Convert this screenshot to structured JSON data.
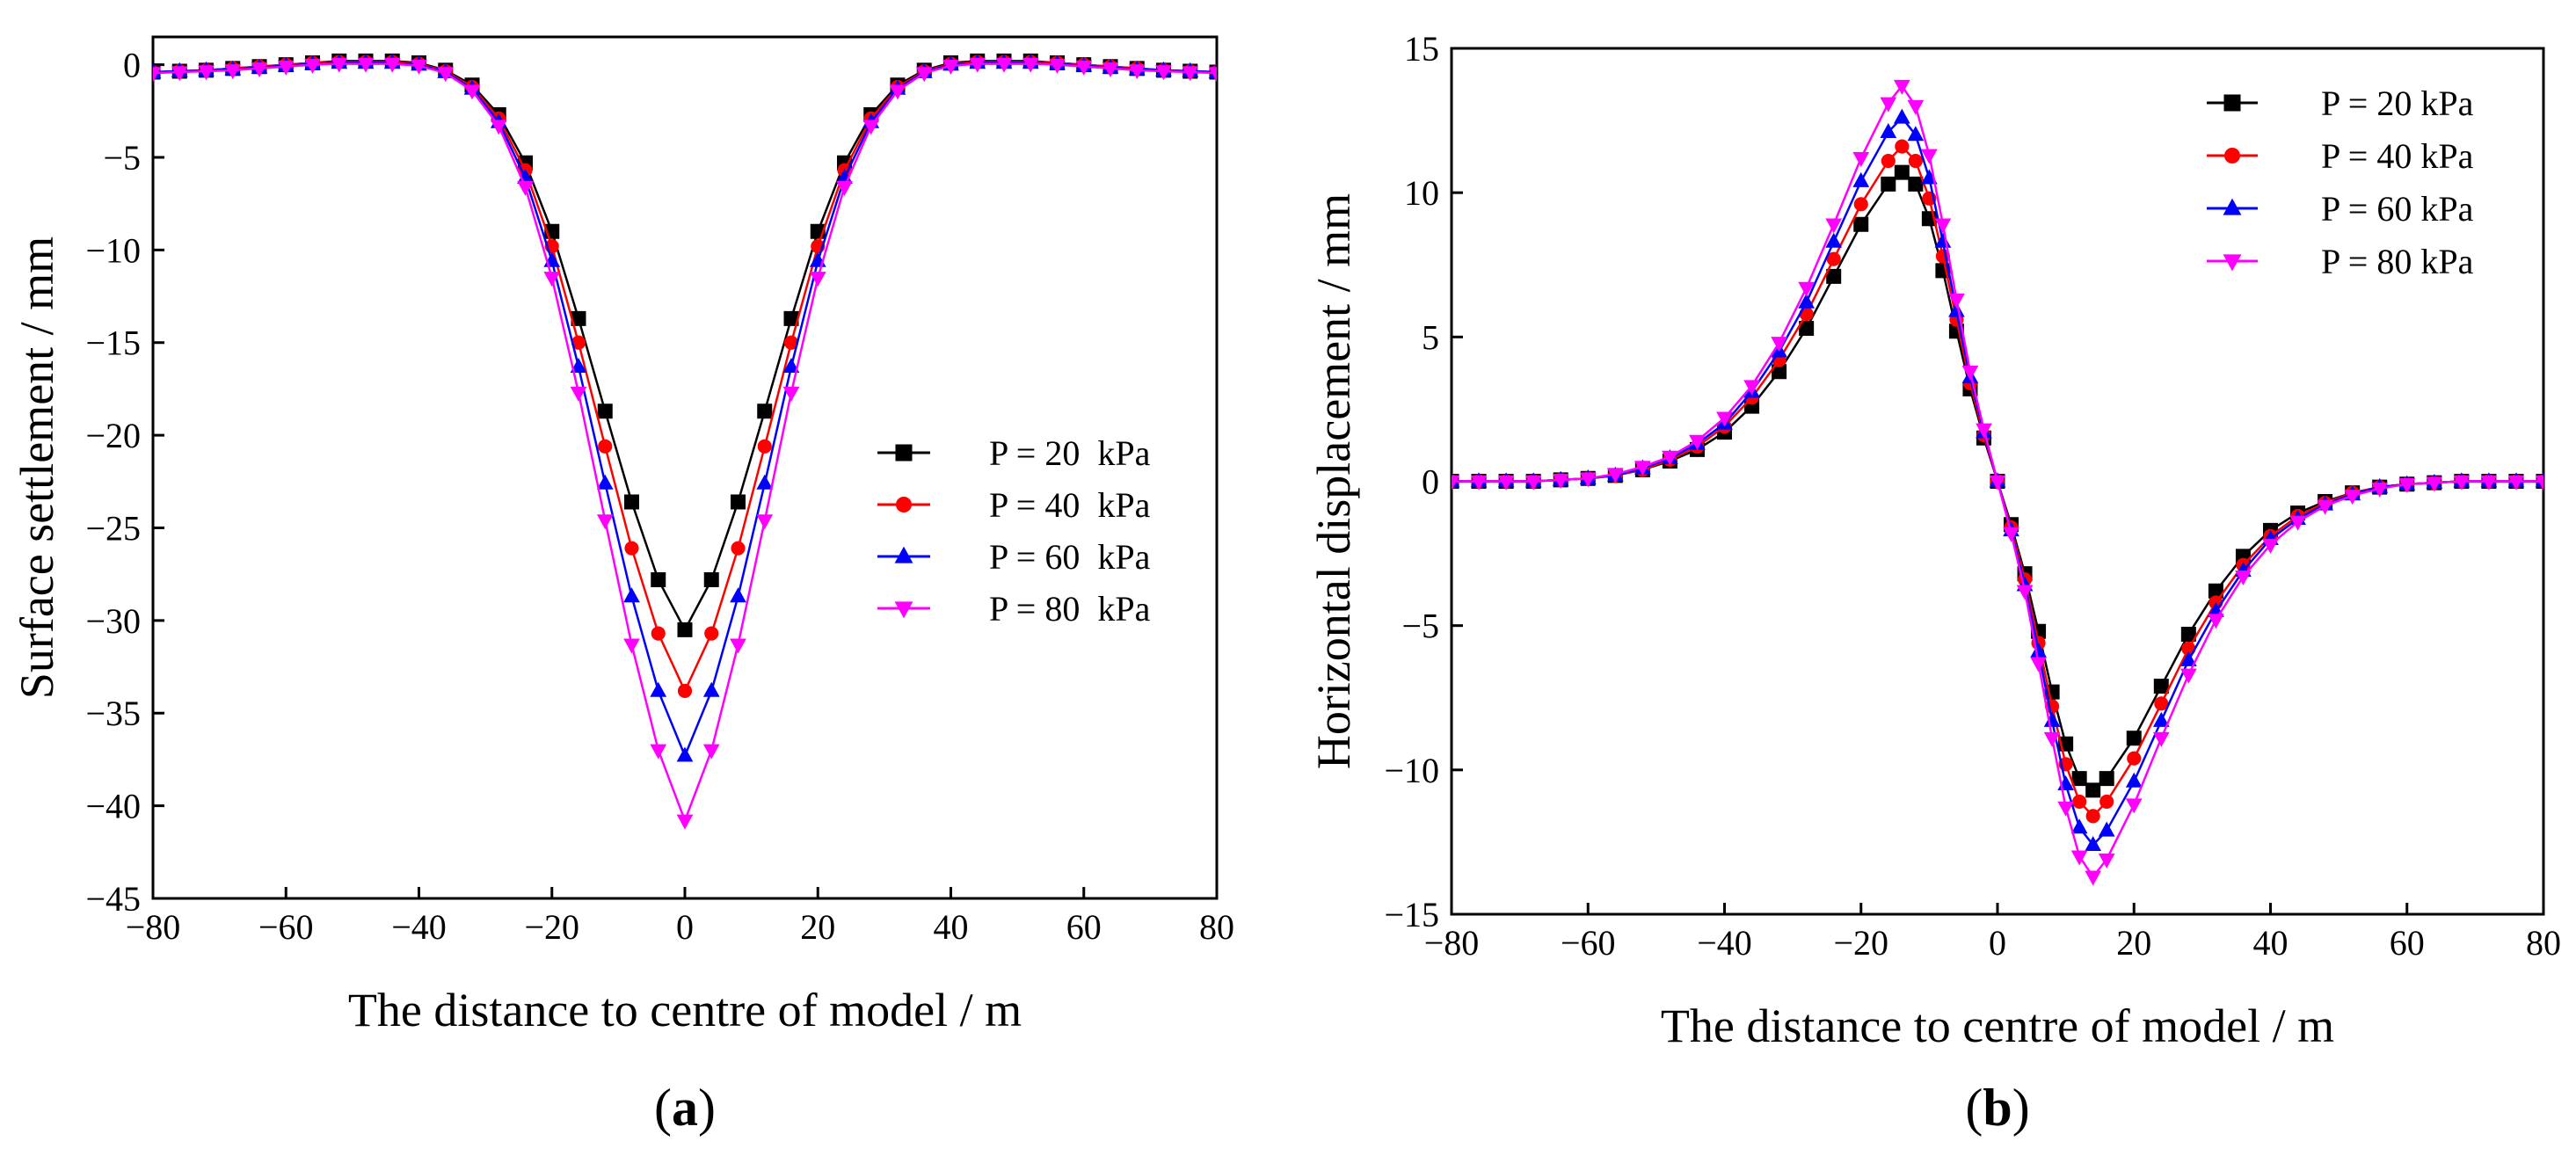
{
  "chart_data": [
    {
      "type": "line",
      "panel_label": "(a)",
      "panel_label_parts": [
        "(",
        "a",
        ")"
      ],
      "xlabel": "The distance to centre of model / m",
      "ylabel": "Surface settlement / mm",
      "xlim": [
        -80,
        80
      ],
      "ylim": [
        -45,
        1.5
      ],
      "xticks": [
        -80,
        -60,
        -40,
        -20,
        0,
        20,
        40,
        60,
        80
      ],
      "yticks": [
        0,
        -5,
        -10,
        -15,
        -20,
        -25,
        -30,
        -35,
        -40,
        -45
      ],
      "xtick_labels": [
        "−80",
        "−60",
        "−40",
        "−20",
        "0",
        "20",
        "40",
        "60",
        "80"
      ],
      "ytick_labels": [
        "0",
        "−5",
        "−10",
        "−15",
        "−20",
        "−25",
        "−30",
        "−35",
        "−40",
        "−45"
      ],
      "legend_position": "center-right",
      "x": [
        -80,
        -76,
        -72,
        -68,
        -64,
        -60,
        -56,
        -52,
        -48,
        -44,
        -40,
        -36,
        -32,
        -28,
        -24,
        -20,
        -16,
        -12,
        -8,
        -4,
        0,
        4,
        8,
        12,
        16,
        20,
        24,
        28,
        32,
        36,
        40,
        44,
        48,
        52,
        56,
        60,
        64,
        68,
        72,
        76,
        80
      ],
      "series": [
        {
          "name": "P = 20  kPa",
          "color": "#000000",
          "marker": "square",
          "values": [
            -0.4,
            -0.35,
            -0.3,
            -0.2,
            -0.1,
            0.0,
            0.1,
            0.2,
            0.2,
            0.2,
            0.1,
            -0.3,
            -1.1,
            -2.7,
            -5.3,
            -9.0,
            -13.7,
            -18.7,
            -23.6,
            -27.8,
            -30.5,
            -27.8,
            -23.6,
            -18.7,
            -13.7,
            -9.0,
            -5.3,
            -2.7,
            -1.1,
            -0.3,
            0.1,
            0.2,
            0.2,
            0.2,
            0.1,
            0.0,
            -0.1,
            -0.2,
            -0.3,
            -0.35,
            -0.4
          ]
        },
        {
          "name": "P = 40  kPa",
          "color": "#ff0000",
          "marker": "circle",
          "values": [
            -0.4,
            -0.35,
            -0.3,
            -0.2,
            -0.1,
            0.0,
            0.1,
            0.15,
            0.15,
            0.15,
            0.05,
            -0.35,
            -1.2,
            -2.9,
            -5.7,
            -9.8,
            -15.0,
            -20.6,
            -26.1,
            -30.7,
            -33.8,
            -30.7,
            -26.1,
            -20.6,
            -15.0,
            -9.8,
            -5.7,
            -2.9,
            -1.2,
            -0.35,
            0.05,
            0.15,
            0.15,
            0.15,
            0.1,
            0.0,
            -0.1,
            -0.2,
            -0.3,
            -0.35,
            -0.4
          ]
        },
        {
          "name": "P = 60  kPa",
          "color": "#0000ff",
          "marker": "triangle-up",
          "values": [
            -0.4,
            -0.35,
            -0.3,
            -0.25,
            -0.15,
            -0.05,
            0.05,
            0.1,
            0.1,
            0.1,
            0.0,
            -0.4,
            -1.3,
            -3.1,
            -6.1,
            -10.6,
            -16.3,
            -22.6,
            -28.7,
            -33.8,
            -37.3,
            -33.8,
            -28.7,
            -22.6,
            -16.3,
            -10.6,
            -6.1,
            -3.1,
            -1.3,
            -0.4,
            0.0,
            0.1,
            0.1,
            0.1,
            0.05,
            -0.05,
            -0.15,
            -0.25,
            -0.3,
            -0.35,
            -0.4
          ]
        },
        {
          "name": "P = 80  kPa",
          "color": "#ff00ff",
          "marker": "triangle-down",
          "values": [
            -0.45,
            -0.4,
            -0.35,
            -0.3,
            -0.2,
            -0.1,
            0.0,
            0.05,
            0.05,
            0.05,
            -0.05,
            -0.45,
            -1.4,
            -3.3,
            -6.6,
            -11.5,
            -17.7,
            -24.6,
            -31.3,
            -37.0,
            -40.8,
            -37.0,
            -31.3,
            -24.6,
            -17.7,
            -11.5,
            -6.6,
            -3.3,
            -1.4,
            -0.45,
            -0.05,
            0.05,
            0.05,
            0.05,
            0.0,
            -0.1,
            -0.2,
            -0.3,
            -0.35,
            -0.4,
            -0.45
          ]
        }
      ]
    },
    {
      "type": "line",
      "panel_label": "(b)",
      "panel_label_parts": [
        "(",
        "b",
        ")"
      ],
      "xlabel": "The distance to centre of model / m",
      "ylabel": "Horizontal displacement / mm",
      "xlim": [
        -80,
        80
      ],
      "ylim": [
        -15,
        15
      ],
      "xticks": [
        -80,
        -60,
        -40,
        -20,
        0,
        20,
        40,
        60,
        80
      ],
      "yticks": [
        15,
        10,
        5,
        0,
        -5,
        -10,
        -15
      ],
      "xtick_labels": [
        "−80",
        "−60",
        "−40",
        "−20",
        "0",
        "20",
        "40",
        "60",
        "80"
      ],
      "ytick_labels": [
        "15",
        "10",
        "5",
        "0",
        "−5",
        "−10",
        "−15"
      ],
      "legend_position": "top-right",
      "x": [
        -80,
        -76,
        -72,
        -68,
        -64,
        -60,
        -56,
        -52,
        -48,
        -44,
        -40,
        -36,
        -32,
        -28,
        -24,
        -20,
        -16,
        -14,
        -12,
        -10,
        -8,
        -6,
        -4,
        -2,
        0,
        2,
        4,
        6,
        8,
        10,
        12,
        14,
        16,
        20,
        24,
        28,
        32,
        36,
        40,
        44,
        48,
        52,
        56,
        60,
        64,
        68,
        72,
        76,
        80
      ],
      "series": [
        {
          "name": "P = 20 kPa",
          "color": "#000000",
          "marker": "square",
          "values": [
            0,
            0,
            0,
            0,
            0.05,
            0.1,
            0.2,
            0.4,
            0.7,
            1.1,
            1.7,
            2.6,
            3.8,
            5.3,
            7.1,
            8.9,
            10.3,
            10.7,
            10.3,
            9.1,
            7.3,
            5.2,
            3.2,
            1.5,
            0,
            -1.5,
            -3.2,
            -5.2,
            -7.3,
            -9.1,
            -10.3,
            -10.7,
            -10.3,
            -8.9,
            -7.1,
            -5.3,
            -3.8,
            -2.6,
            -1.7,
            -1.1,
            -0.7,
            -0.4,
            -0.2,
            -0.1,
            -0.05,
            0,
            0,
            0,
            0
          ]
        },
        {
          "name": "P = 40 kPa",
          "color": "#ff0000",
          "marker": "circle",
          "values": [
            0,
            0,
            0,
            0,
            0.05,
            0.1,
            0.2,
            0.4,
            0.75,
            1.2,
            1.9,
            2.9,
            4.2,
            5.8,
            7.7,
            9.6,
            11.1,
            11.6,
            11.1,
            9.8,
            7.8,
            5.6,
            3.4,
            1.6,
            0,
            -1.6,
            -3.4,
            -5.6,
            -7.8,
            -9.8,
            -11.1,
            -11.6,
            -11.1,
            -9.6,
            -7.7,
            -5.8,
            -4.2,
            -2.9,
            -1.9,
            -1.2,
            -0.75,
            -0.4,
            -0.2,
            -0.1,
            -0.05,
            0,
            0,
            0,
            0
          ]
        },
        {
          "name": "P = 60 kPa",
          "color": "#0000ff",
          "marker": "triangle-up",
          "values": [
            0,
            0,
            0,
            0,
            0.05,
            0.1,
            0.2,
            0.45,
            0.8,
            1.3,
            2.0,
            3.1,
            4.5,
            6.2,
            8.3,
            10.4,
            12.1,
            12.6,
            12.0,
            10.5,
            8.3,
            5.9,
            3.6,
            1.7,
            0,
            -1.7,
            -3.6,
            -5.9,
            -8.3,
            -10.5,
            -12.0,
            -12.6,
            -12.1,
            -10.4,
            -8.3,
            -6.2,
            -4.5,
            -3.1,
            -2.0,
            -1.3,
            -0.8,
            -0.45,
            -0.2,
            -0.1,
            -0.05,
            0,
            0,
            0,
            0
          ]
        },
        {
          "name": "P = 80 kPa",
          "color": "#ff00ff",
          "marker": "triangle-down",
          "values": [
            0,
            0,
            0,
            0,
            0.05,
            0.1,
            0.25,
            0.5,
            0.85,
            1.4,
            2.2,
            3.3,
            4.8,
            6.7,
            8.9,
            11.2,
            13.1,
            13.7,
            13.0,
            11.3,
            8.9,
            6.3,
            3.8,
            1.8,
            0,
            -1.8,
            -3.8,
            -6.3,
            -8.9,
            -11.3,
            -13.0,
            -13.7,
            -13.1,
            -11.2,
            -8.9,
            -6.7,
            -4.8,
            -3.3,
            -2.2,
            -1.4,
            -0.85,
            -0.5,
            -0.25,
            -0.1,
            -0.05,
            0,
            0,
            0,
            0
          ]
        }
      ]
    }
  ]
}
